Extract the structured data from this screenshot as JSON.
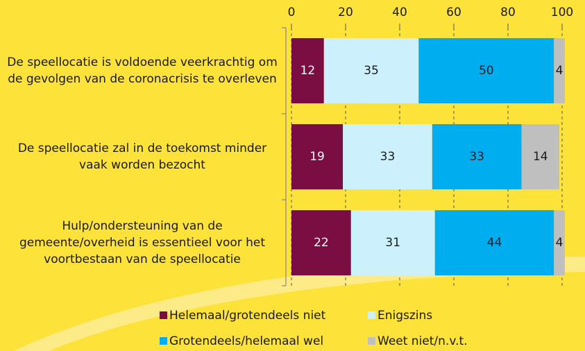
{
  "chart_data": {
    "type": "bar",
    "orientation": "horizontal",
    "stacked": true,
    "categories": [
      "De speellocatie is voldoende veerkrachtig om de gevolgen van de coronacrisis te overleven",
      "De speellocatie zal in de toekomst minder vaak worden bezocht",
      "Hulp/ondersteuning van de gemeente/overheid is essentieel voor het voortbestaan van de speellocatie"
    ],
    "series": [
      {
        "name": "Helemaal/grotendeels niet",
        "color": "#7a0d42",
        "label_color": "#ffffff",
        "values": [
          12,
          19,
          22
        ]
      },
      {
        "name": "Enigszins",
        "color": "#ccf0fc",
        "label_color": "#1a1a1a",
        "values": [
          35,
          33,
          31
        ]
      },
      {
        "name": "Grotendeels/helemaal wel",
        "color": "#00adee",
        "label_color": "#1a1a1a",
        "values": [
          50,
          33,
          44
        ]
      },
      {
        "name": "Weet niet/n.v.t.",
        "color": "#bfbfbf",
        "label_color": "#1a1a1a",
        "values": [
          4,
          14,
          4
        ]
      }
    ],
    "xlim": [
      0,
      100
    ],
    "xticks": [
      0,
      20,
      40,
      60,
      80,
      100
    ],
    "grid": true,
    "legend": "bottom"
  }
}
